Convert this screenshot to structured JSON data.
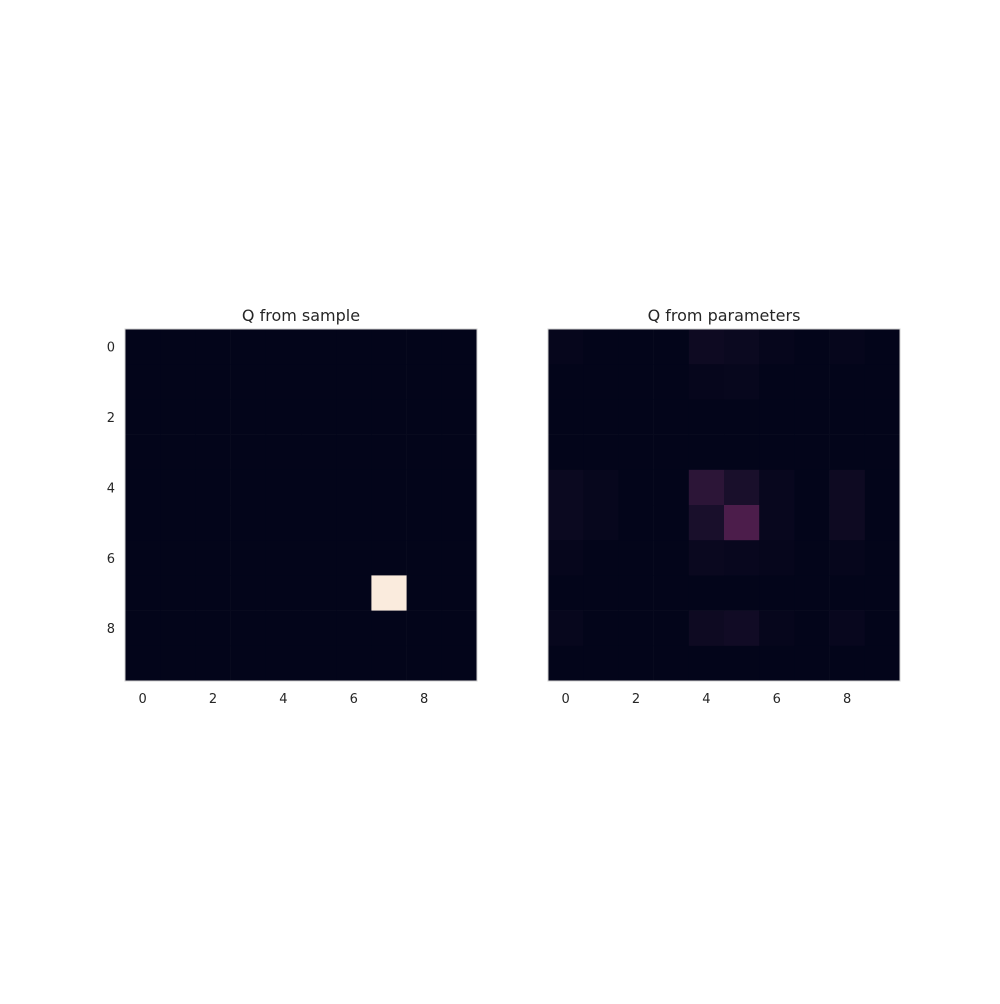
{
  "chart_data": [
    {
      "type": "heatmap",
      "title": "Q from sample",
      "xlabel": "",
      "ylabel": "",
      "rows": 10,
      "cols": 10,
      "vmin": 0,
      "vmax": 1,
      "x_ticks": [
        "0",
        "2",
        "4",
        "6",
        "8"
      ],
      "y_ticks": [
        "0",
        "2",
        "4",
        "6",
        "8"
      ],
      "y_tick_labels_visible": true,
      "values": [
        [
          0,
          0,
          0,
          0,
          0,
          0,
          0,
          0,
          0,
          0
        ],
        [
          0,
          0,
          0,
          0,
          0,
          0,
          0,
          0,
          0,
          0
        ],
        [
          0,
          0,
          0,
          0,
          0,
          0,
          0,
          0,
          0,
          0
        ],
        [
          0,
          0,
          0,
          0,
          0,
          0,
          0,
          0,
          0,
          0
        ],
        [
          0,
          0,
          0,
          0,
          0,
          0,
          0,
          0,
          0,
          0
        ],
        [
          0,
          0,
          0,
          0,
          0,
          0,
          0,
          0,
          0,
          0
        ],
        [
          0,
          0,
          0,
          0,
          0,
          0,
          0,
          0,
          0,
          0
        ],
        [
          0,
          0,
          0,
          0,
          0,
          0,
          0,
          1,
          0,
          0
        ],
        [
          0,
          0,
          0,
          0,
          0,
          0,
          0,
          0,
          0,
          0
        ],
        [
          0,
          0,
          0,
          0,
          0,
          0,
          0,
          0,
          0,
          0
        ]
      ]
    },
    {
      "type": "heatmap",
      "title": "Q from parameters",
      "xlabel": "",
      "ylabel": "",
      "rows": 10,
      "cols": 10,
      "vmin": 0,
      "vmax": 1,
      "x_ticks": [
        "0",
        "2",
        "4",
        "6",
        "8"
      ],
      "y_ticks": [],
      "y_tick_labels_visible": false,
      "values": [
        [
          0.01,
          0,
          0,
          0,
          0.04,
          0.03,
          0.01,
          0,
          0.01,
          0
        ],
        [
          0,
          0,
          0,
          0,
          0.01,
          0.015,
          0,
          0,
          0,
          0
        ],
        [
          0,
          0,
          0,
          0,
          0,
          0,
          0,
          0,
          0,
          0
        ],
        [
          0,
          0,
          0,
          0,
          0,
          0,
          0,
          0,
          0,
          0
        ],
        [
          0.03,
          0.015,
          0,
          0,
          0.13,
          0.08,
          0.02,
          0,
          0.04,
          0
        ],
        [
          0.03,
          0.015,
          0,
          0,
          0.08,
          0.2,
          0.02,
          0,
          0.04,
          0
        ],
        [
          0.01,
          0,
          0,
          0,
          0.025,
          0.02,
          0.01,
          0,
          0.01,
          0
        ],
        [
          0,
          0,
          0,
          0,
          0,
          0,
          0,
          0,
          0,
          0
        ],
        [
          0.015,
          0,
          0,
          0,
          0.04,
          0.05,
          0.01,
          0,
          0.02,
          0
        ],
        [
          0,
          0,
          0,
          0,
          0,
          0,
          0,
          0,
          0,
          0
        ]
      ]
    }
  ]
}
